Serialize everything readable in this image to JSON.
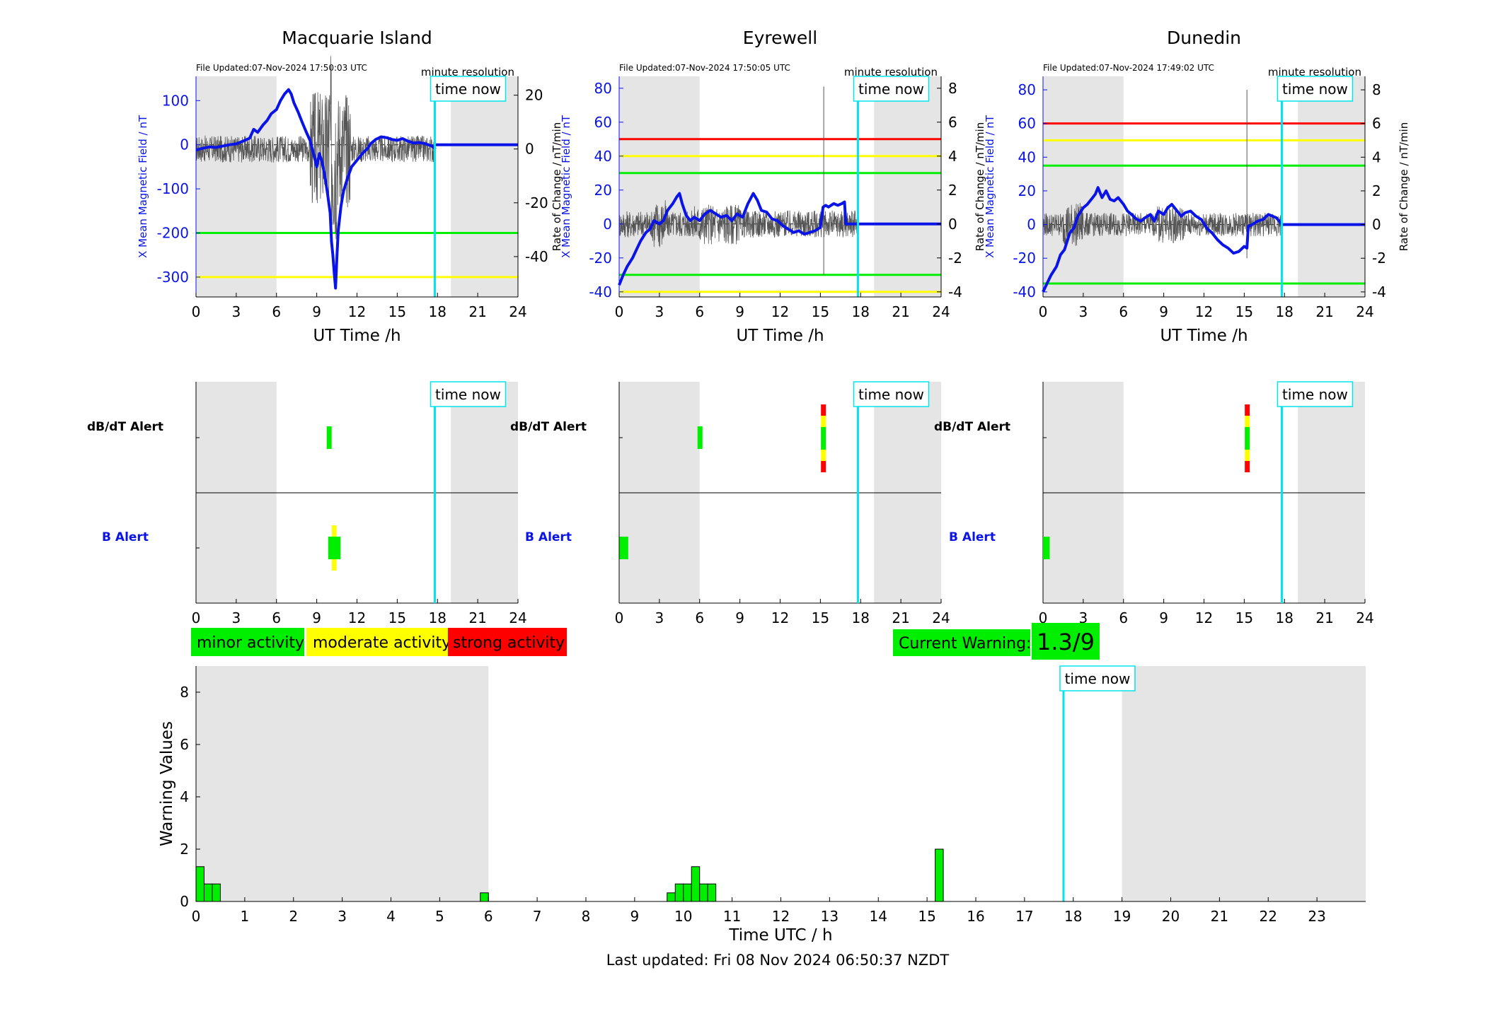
{
  "colors": {
    "b_line": "#0a14e6",
    "dbdt_line": "#555555",
    "red": "#ff0000",
    "yellow": "#ffff00",
    "green": "#00ee00",
    "cyan": "#00e5ee",
    "night": "#e5e5e5"
  },
  "labels": {
    "file_prefix": "File Updated:",
    "minute_resolution": "minute resolution",
    "time_now": "time now",
    "x_axis": "UT Time /h",
    "y_left": "X Mean Magnetic Field / nT",
    "y_right": "Rate of Change / nT/min",
    "dbdt_alert": "dB/dT Alert",
    "b_alert": "B Alert",
    "minor": "minor activity",
    "moderate": "moderate activity",
    "strong": "strong activity",
    "current_warning_label": "Current Warning:",
    "current_warning_value": "1.3/9",
    "footer": "Last updated: Fri 08 Nov 2024 06:50:37 NZDT"
  },
  "stations": [
    {
      "name": "Macquarie Island",
      "file_updated": "07-Nov-2024 17:50:03 UTC",
      "ylim": [
        -345,
        155
      ],
      "yticks": [
        100,
        0,
        -100,
        -200,
        -300
      ],
      "ylim_rate": [
        -55,
        27
      ],
      "yticks_rate": [
        20,
        0,
        -20,
        -40
      ],
      "thresholds": [
        {
          "value": -200,
          "color": "green"
        },
        {
          "value": -300,
          "color": "yellow"
        }
      ],
      "b_trace": [
        [
          0,
          -12
        ],
        [
          0.5,
          -8
        ],
        [
          1,
          -5
        ],
        [
          1.5,
          -6
        ],
        [
          2,
          -3
        ],
        [
          2.5,
          0
        ],
        [
          3,
          2
        ],
        [
          3.5,
          8
        ],
        [
          4,
          15
        ],
        [
          4.3,
          35
        ],
        [
          4.6,
          28
        ],
        [
          5,
          45
        ],
        [
          5.3,
          55
        ],
        [
          5.6,
          70
        ],
        [
          6,
          80
        ],
        [
          6.3,
          100
        ],
        [
          6.6,
          115
        ],
        [
          6.9,
          125
        ],
        [
          7.1,
          115
        ],
        [
          7.3,
          95
        ],
        [
          7.6,
          75
        ],
        [
          7.9,
          52
        ],
        [
          8.2,
          30
        ],
        [
          8.5,
          10
        ],
        [
          8.8,
          -25
        ],
        [
          9,
          -50
        ],
        [
          9.2,
          -20
        ],
        [
          9.4,
          -40
        ],
        [
          9.6,
          -70
        ],
        [
          9.8,
          -110
        ],
        [
          10,
          -155
        ],
        [
          10.1,
          -220
        ],
        [
          10.2,
          -250
        ],
        [
          10.3,
          -290
        ],
        [
          10.4,
          -325
        ],
        [
          10.5,
          -255
        ],
        [
          10.6,
          -195
        ],
        [
          10.8,
          -140
        ],
        [
          11,
          -105
        ],
        [
          11.3,
          -75
        ],
        [
          11.6,
          -50
        ],
        [
          12,
          -35
        ],
        [
          12.4,
          -20
        ],
        [
          12.8,
          -8
        ],
        [
          13,
          2
        ],
        [
          13.4,
          12
        ],
        [
          13.8,
          18
        ],
        [
          14.2,
          16
        ],
        [
          14.6,
          12
        ],
        [
          15,
          10
        ],
        [
          15.4,
          14
        ],
        [
          15.8,
          8
        ],
        [
          16.2,
          4
        ],
        [
          16.6,
          5
        ],
        [
          17,
          3
        ],
        [
          17.3,
          0
        ],
        [
          17.6,
          -3
        ],
        [
          17.85,
          -10
        ]
      ],
      "rate_amp": 5,
      "rate_bursts": [
        [
          8.5,
          11.5,
          22
        ],
        [
          9.8,
          10.5,
          35
        ]
      ],
      "dbdt_alerts": [
        {
          "t": 9.9,
          "color": "green",
          "band": "mid"
        }
      ],
      "b_alerts": [
        {
          "t": 10.3,
          "color": "green",
          "band": "mid",
          "width": 0.9
        },
        {
          "t": 10.3,
          "color": "yellow",
          "band": "wide",
          "width": 0.35
        }
      ]
    },
    {
      "name": "Eyrewell",
      "file_updated": "07-Nov-2024 17:50:05 UTC",
      "ylim": [
        -43,
        87
      ],
      "yticks": [
        80,
        60,
        40,
        20,
        0,
        -20,
        -40
      ],
      "ylim_rate": [
        -4.3,
        8.7
      ],
      "yticks_rate": [
        8,
        6,
        4,
        2,
        0,
        -2,
        -4
      ],
      "thresholds": [
        {
          "value": 50,
          "color": "red"
        },
        {
          "value": 40,
          "color": "yellow"
        },
        {
          "value": 30,
          "color": "green"
        },
        {
          "value": -30,
          "color": "green"
        },
        {
          "value": -40,
          "color": "yellow"
        }
      ],
      "b_trace": [
        [
          0,
          -36
        ],
        [
          0.3,
          -30
        ],
        [
          0.6,
          -25
        ],
        [
          1,
          -20
        ],
        [
          1.3,
          -15
        ],
        [
          1.6,
          -10
        ],
        [
          2,
          -5
        ],
        [
          2.3,
          -3
        ],
        [
          2.6,
          2
        ],
        [
          3,
          0
        ],
        [
          3.3,
          2
        ],
        [
          3.6,
          8
        ],
        [
          4,
          12
        ],
        [
          4.3,
          16
        ],
        [
          4.5,
          18
        ],
        [
          4.7,
          12
        ],
        [
          5,
          5
        ],
        [
          5.3,
          2
        ],
        [
          5.6,
          4
        ],
        [
          6,
          2
        ],
        [
          6.4,
          6
        ],
        [
          6.8,
          8
        ],
        [
          7.2,
          6
        ],
        [
          7.6,
          4
        ],
        [
          8,
          5
        ],
        [
          8.4,
          2
        ],
        [
          8.8,
          6
        ],
        [
          9.2,
          4
        ],
        [
          9.6,
          12
        ],
        [
          10,
          18
        ],
        [
          10.3,
          14
        ],
        [
          10.6,
          8
        ],
        [
          11,
          7
        ],
        [
          11.4,
          3
        ],
        [
          11.8,
          2
        ],
        [
          12.2,
          -1
        ],
        [
          12.6,
          -3
        ],
        [
          13,
          -5
        ],
        [
          13.4,
          -4
        ],
        [
          13.8,
          -6
        ],
        [
          14.2,
          -5
        ],
        [
          14.6,
          -4
        ],
        [
          15,
          -2
        ],
        [
          15.2,
          10
        ],
        [
          15.4,
          11
        ],
        [
          15.6,
          10
        ],
        [
          15.8,
          11
        ],
        [
          16,
          12
        ],
        [
          16.3,
          11
        ],
        [
          16.6,
          12
        ],
        [
          16.8,
          13
        ],
        [
          16.9,
          0
        ],
        [
          17.85,
          0
        ]
      ],
      "rate_amp": 0.8,
      "rate_bursts": [
        [
          2.5,
          3.5,
          1.5
        ],
        [
          5.5,
          9,
          1.2
        ]
      ],
      "rate_spikes": [
        [
          15.25,
          8.1,
          -3.0
        ]
      ],
      "dbdt_alerts": [
        {
          "t": 6.0,
          "color": "green",
          "band": "mid"
        },
        {
          "t": 15.2,
          "color": "stack",
          "band": "stack"
        }
      ],
      "b_alerts": [
        {
          "t": 0.35,
          "color": "green",
          "band": "mid",
          "width": 0.65
        }
      ]
    },
    {
      "name": "Dunedin",
      "file_updated": "07-Nov-2024 17:49:02 UTC",
      "ylim": [
        -43,
        88
      ],
      "yticks": [
        80,
        60,
        40,
        20,
        0,
        -20,
        -40
      ],
      "ylim_rate": [
        -4.3,
        8.8
      ],
      "yticks_rate": [
        8,
        6,
        4,
        2,
        0,
        -2,
        -4
      ],
      "thresholds": [
        {
          "value": 60,
          "color": "red"
        },
        {
          "value": 50,
          "color": "yellow"
        },
        {
          "value": 35,
          "color": "green"
        },
        {
          "value": -35,
          "color": "green"
        }
      ],
      "b_trace": [
        [
          0,
          -40
        ],
        [
          0.3,
          -35
        ],
        [
          0.6,
          -30
        ],
        [
          1,
          -25
        ],
        [
          1.3,
          -18
        ],
        [
          1.6,
          -15
        ],
        [
          2,
          -5
        ],
        [
          2.3,
          -2
        ],
        [
          2.6,
          5
        ],
        [
          3,
          10
        ],
        [
          3.3,
          12
        ],
        [
          3.6,
          15
        ],
        [
          3.9,
          18
        ],
        [
          4.1,
          22
        ],
        [
          4.4,
          16
        ],
        [
          4.7,
          20
        ],
        [
          5,
          15
        ],
        [
          5.3,
          14
        ],
        [
          5.6,
          16
        ],
        [
          6,
          12
        ],
        [
          6.3,
          8
        ],
        [
          6.6,
          6
        ],
        [
          7,
          3
        ],
        [
          7.3,
          2
        ],
        [
          7.6,
          4
        ],
        [
          8,
          6
        ],
        [
          8.3,
          2
        ],
        [
          8.6,
          8
        ],
        [
          9,
          6
        ],
        [
          9.3,
          10
        ],
        [
          9.6,
          12
        ],
        [
          10,
          8
        ],
        [
          10.3,
          5
        ],
        [
          10.6,
          7
        ],
        [
          11,
          8
        ],
        [
          11.4,
          5
        ],
        [
          11.8,
          3
        ],
        [
          12.2,
          -2
        ],
        [
          12.6,
          -5
        ],
        [
          13,
          -9
        ],
        [
          13.4,
          -12
        ],
        [
          13.8,
          -14
        ],
        [
          14.2,
          -17
        ],
        [
          14.6,
          -16
        ],
        [
          15,
          -13
        ],
        [
          15.2,
          -14
        ],
        [
          15.3,
          -1
        ],
        [
          15.6,
          0
        ],
        [
          16,
          2
        ],
        [
          16.4,
          3
        ],
        [
          16.8,
          6
        ],
        [
          17.1,
          5
        ],
        [
          17.4,
          4
        ],
        [
          17.6,
          2
        ],
        [
          17.8,
          0
        ]
      ],
      "rate_amp": 0.7,
      "rate_bursts": [
        [
          1.5,
          3,
          1.3
        ],
        [
          8.5,
          10.5,
          1.1
        ]
      ],
      "rate_spikes": [
        [
          15.2,
          8.0,
          -2.0
        ]
      ],
      "dbdt_alerts": [
        {
          "t": 15.2,
          "color": "stack",
          "band": "stack"
        }
      ],
      "b_alerts": [
        {
          "t": 0.25,
          "color": "green",
          "band": "mid",
          "width": 0.5
        }
      ]
    }
  ],
  "chart_data": {
    "type": "bar",
    "xlabel": "Time UTC / h",
    "ylabel": "Warning Values",
    "ylim": [
      0,
      9
    ],
    "yticks": [
      0,
      2,
      4,
      6,
      8
    ],
    "xlim": [
      0,
      24
    ],
    "xticks": [
      0,
      1,
      2,
      3,
      4,
      5,
      6,
      7,
      8,
      9,
      10,
      11,
      12,
      13,
      14,
      15,
      16,
      17,
      18,
      19,
      20,
      21,
      22,
      23
    ],
    "night_bands": [
      [
        0,
        6
      ],
      [
        19,
        24
      ]
    ],
    "time_now": 17.8,
    "bin_width": 0.1667,
    "bars": [
      {
        "x": 0.0,
        "value": 1.33
      },
      {
        "x": 0.1667,
        "value": 0.67
      },
      {
        "x": 0.3333,
        "value": 0.67
      },
      {
        "x": 5.8333,
        "value": 0.33
      },
      {
        "x": 9.6667,
        "value": 0.33
      },
      {
        "x": 9.8333,
        "value": 0.67
      },
      {
        "x": 10.0,
        "value": 0.67
      },
      {
        "x": 10.1667,
        "value": 1.33
      },
      {
        "x": 10.3333,
        "value": 0.67
      },
      {
        "x": 10.5,
        "value": 0.67
      },
      {
        "x": 15.1667,
        "value": 2.0
      }
    ]
  },
  "small_axes": {
    "xlim": [
      0,
      24
    ],
    "xticks": [
      0,
      3,
      6,
      9,
      12,
      15,
      18,
      21,
      24
    ],
    "night_bands": [
      [
        0,
        6
      ],
      [
        19,
        24
      ]
    ],
    "time_now": 17.8
  }
}
